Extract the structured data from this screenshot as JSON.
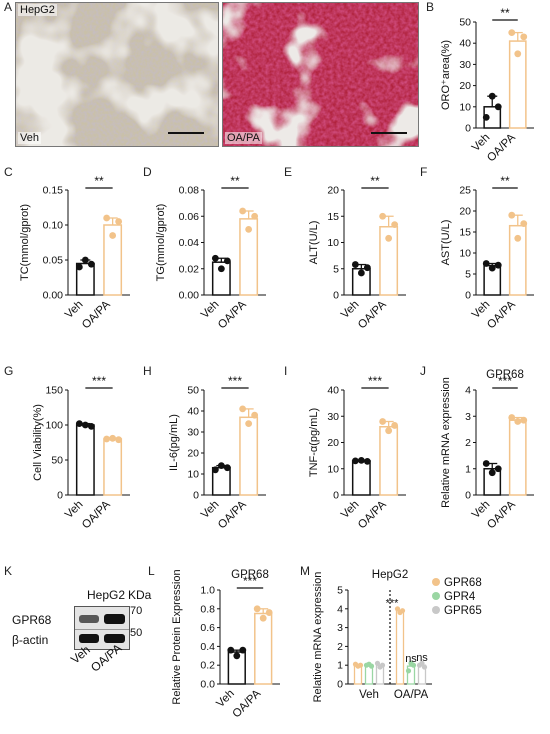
{
  "panel_letters": [
    "A",
    "B",
    "C",
    "D",
    "E",
    "F",
    "G",
    "H",
    "I",
    "J",
    "K",
    "L",
    "M"
  ],
  "micrographs": {
    "cell_line": "HepG2",
    "left_label": "Veh",
    "right_label": "OA/PA"
  },
  "colors": {
    "veh": "#111111",
    "oapa": "#f2c38a",
    "gpr68": "#f2c38a",
    "gpr4": "#9ad6a3",
    "gpr65": "#c8c8c8",
    "stain_red": "#b0223c"
  },
  "chart_data": [
    {
      "panel": "B",
      "type": "bar",
      "categories": [
        "Veh",
        "OA/PA"
      ],
      "values": [
        10,
        41
      ],
      "points": [
        [
          5,
          15,
          10
        ],
        [
          45,
          35,
          43
        ]
      ],
      "ylabel": "ORO⁺area(%)",
      "yticks": [
        "0",
        "10",
        "20",
        "30",
        "40",
        "50"
      ],
      "ylim": [
        0,
        50
      ],
      "sig": "**"
    },
    {
      "panel": "C",
      "type": "bar",
      "categories": [
        "Veh",
        "OA/PA"
      ],
      "values": [
        0.045,
        0.1
      ],
      "points": [
        [
          0.04,
          0.05,
          0.044
        ],
        [
          0.11,
          0.085,
          0.105
        ]
      ],
      "ylabel": "TC(mmol/gprot)",
      "yticks": [
        "0.00",
        "0.05",
        "0.10",
        "0.15"
      ],
      "ylim": [
        0,
        0.15
      ],
      "sig": "**"
    },
    {
      "panel": "D",
      "type": "bar",
      "categories": [
        "Veh",
        "OA/PA"
      ],
      "values": [
        0.025,
        0.058
      ],
      "points": [
        [
          0.028,
          0.02,
          0.026
        ],
        [
          0.064,
          0.05,
          0.06
        ]
      ],
      "ylabel": "TG(mmol/gprot)",
      "yticks": [
        "0.00",
        "0.02",
        "0.04",
        "0.06",
        "0.08"
      ],
      "ylim": [
        0,
        0.08
      ],
      "sig": "**"
    },
    {
      "panel": "E",
      "type": "bar",
      "categories": [
        "Veh",
        "OA/PA"
      ],
      "values": [
        5,
        13
      ],
      "points": [
        [
          5.8,
          4.2,
          5.2
        ],
        [
          15,
          10.8,
          13.4
        ]
      ],
      "ylabel": "ALT(U/L)",
      "yticks": [
        "0",
        "5",
        "10",
        "15",
        "20"
      ],
      "ylim": [
        0,
        20
      ],
      "sig": "**"
    },
    {
      "panel": "F",
      "type": "bar",
      "categories": [
        "Veh",
        "OA/PA"
      ],
      "values": [
        7,
        16.5
      ],
      "points": [
        [
          7.5,
          6.4,
          7.1
        ],
        [
          19,
          13.5,
          17
        ]
      ],
      "ylabel": "AST(U/L)",
      "yticks": [
        "0",
        "5",
        "10",
        "15",
        "20",
        "25"
      ],
      "ylim": [
        0,
        25
      ],
      "sig": "**"
    },
    {
      "panel": "G",
      "type": "bar",
      "categories": [
        "Veh",
        "OA/PA"
      ],
      "values": [
        100,
        80
      ],
      "points": [
        [
          102,
          100,
          98
        ],
        [
          80,
          81,
          79
        ]
      ],
      "ylabel": "Cell Viability(%)",
      "yticks": [
        "0",
        "50",
        "100",
        "150"
      ],
      "ylim": [
        0,
        150
      ],
      "sig": "***"
    },
    {
      "panel": "H",
      "type": "bar",
      "categories": [
        "Veh",
        "OA/PA"
      ],
      "values": [
        13,
        37
      ],
      "points": [
        [
          12,
          14,
          13
        ],
        [
          41,
          34,
          38
        ]
      ],
      "ylabel": "IL-6(pg/mL)",
      "yticks": [
        "0",
        "10",
        "20",
        "30",
        "40",
        "50"
      ],
      "ylim": [
        0,
        50
      ],
      "sig": "***"
    },
    {
      "panel": "I",
      "type": "bar",
      "categories": [
        "Veh",
        "OA/PA"
      ],
      "values": [
        13,
        26
      ],
      "points": [
        [
          13,
          13.2,
          12.8
        ],
        [
          28,
          24.5,
          26.5
        ]
      ],
      "ylabel": "TNF-α(pg/mL)",
      "yticks": [
        "0",
        "10",
        "20",
        "30",
        "40"
      ],
      "ylim": [
        0,
        40
      ],
      "sig": "***"
    },
    {
      "panel": "J",
      "title": "GPR68",
      "type": "bar",
      "categories": [
        "Veh",
        "OA/PA"
      ],
      "values": [
        1.0,
        2.85
      ],
      "points": [
        [
          1.2,
          0.85,
          1.0
        ],
        [
          2.95,
          2.8,
          2.85
        ]
      ],
      "ylabel": "Relative mRNA expression",
      "yticks": [
        "0",
        "1",
        "2",
        "3",
        "4"
      ],
      "ylim": [
        0,
        4
      ],
      "sig": "***"
    },
    {
      "panel": "L",
      "title": "GPR68",
      "type": "bar",
      "categories": [
        "Veh",
        "OA/PA"
      ],
      "values": [
        0.34,
        0.75
      ],
      "points": [
        [
          0.36,
          0.3,
          0.36
        ],
        [
          0.8,
          0.7,
          0.76
        ]
      ],
      "ylabel": "Relative Protein Expression",
      "yticks": [
        "0.0",
        "0.2",
        "0.4",
        "0.6",
        "0.8",
        "1.0"
      ],
      "ylim": [
        0,
        1.0
      ],
      "sig": "***"
    },
    {
      "panel": "M",
      "title": "HepG2",
      "type": "bar",
      "categories": [
        "Veh",
        "OA/PA"
      ],
      "series": [
        {
          "name": "GPR68",
          "values": [
            1.0,
            3.9
          ],
          "points": [
            [
              1.05,
              0.95,
              1.0
            ],
            [
              4.0,
              3.8,
              3.9
            ]
          ]
        },
        {
          "name": "GPR4",
          "values": [
            1.0,
            0.95
          ],
          "points": [
            [
              1.0,
              1.05,
              0.95
            ],
            [
              0.7,
              1.1,
              1.0
            ]
          ]
        },
        {
          "name": "GPR65",
          "values": [
            1.0,
            1.0
          ],
          "points": [
            [
              1.1,
              0.9,
              1.0
            ],
            [
              1.0,
              1.1,
              0.9
            ]
          ]
        }
      ],
      "ylabel": "Relative mRNA expression",
      "yticks": [
        "0",
        "1",
        "2",
        "3",
        "4",
        "5"
      ],
      "ylim": [
        0,
        5
      ],
      "annotations": [
        "***",
        "ns",
        "ns"
      ],
      "legend_position": "top-right"
    }
  ],
  "western": {
    "cell_line": "HepG2",
    "unit": "KDa",
    "markers": [
      "70",
      "50"
    ],
    "proteins": [
      "GPR68",
      "β-actin"
    ],
    "lanes": [
      "Veh",
      "OA/PA"
    ]
  }
}
